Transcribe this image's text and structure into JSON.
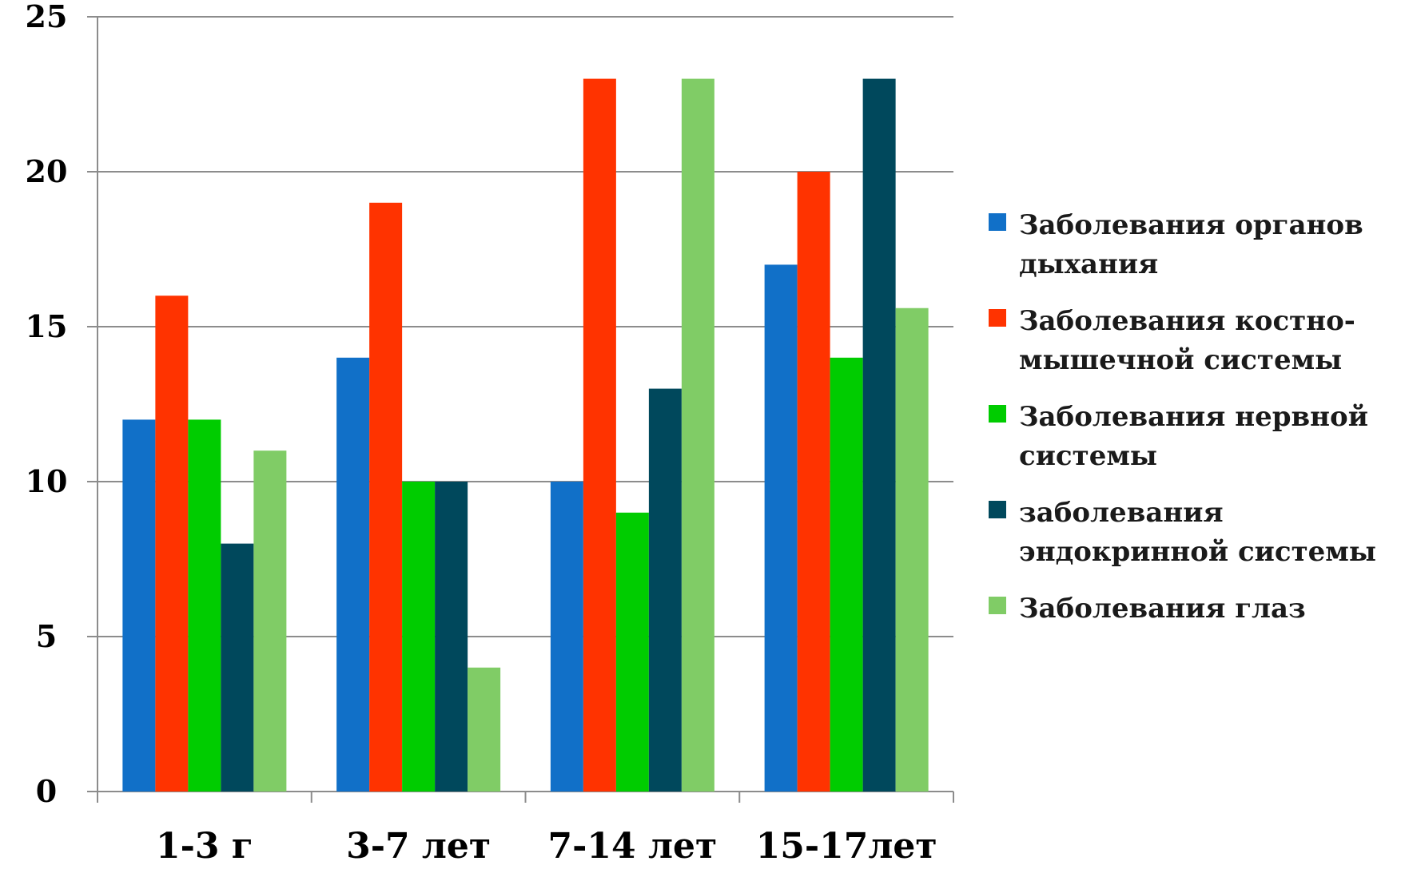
{
  "chart_data": {
    "type": "bar",
    "categories": [
      "1-3 г",
      "3-7 лет",
      "7-14 лет",
      "15-17лет"
    ],
    "series": [
      {
        "name": "Заболевания органов дыхания",
        "color": "#1170C8",
        "values": [
          12,
          14,
          10,
          17
        ]
      },
      {
        "name": "Заболевания костно-мышечной системы",
        "color": "#FF3300",
        "values": [
          16,
          19,
          23,
          20
        ]
      },
      {
        "name": "Заболевания нервной системы",
        "color": "#00CC00",
        "values": [
          12,
          10,
          9,
          14
        ]
      },
      {
        "name": "заболевания эндокринной системы",
        "color": "#00485C",
        "values": [
          8,
          10,
          13,
          23
        ]
      },
      {
        "name": "Заболевания глаз",
        "color": "#80CC66",
        "values": [
          11,
          4,
          23,
          15.6
        ]
      }
    ],
    "yticks": [
      "0",
      "5",
      "10",
      "15",
      "20",
      "25"
    ],
    "ylim": [
      0,
      25
    ],
    "grid": true,
    "legend_position": "right",
    "title": "",
    "xlabel": "",
    "ylabel": ""
  }
}
